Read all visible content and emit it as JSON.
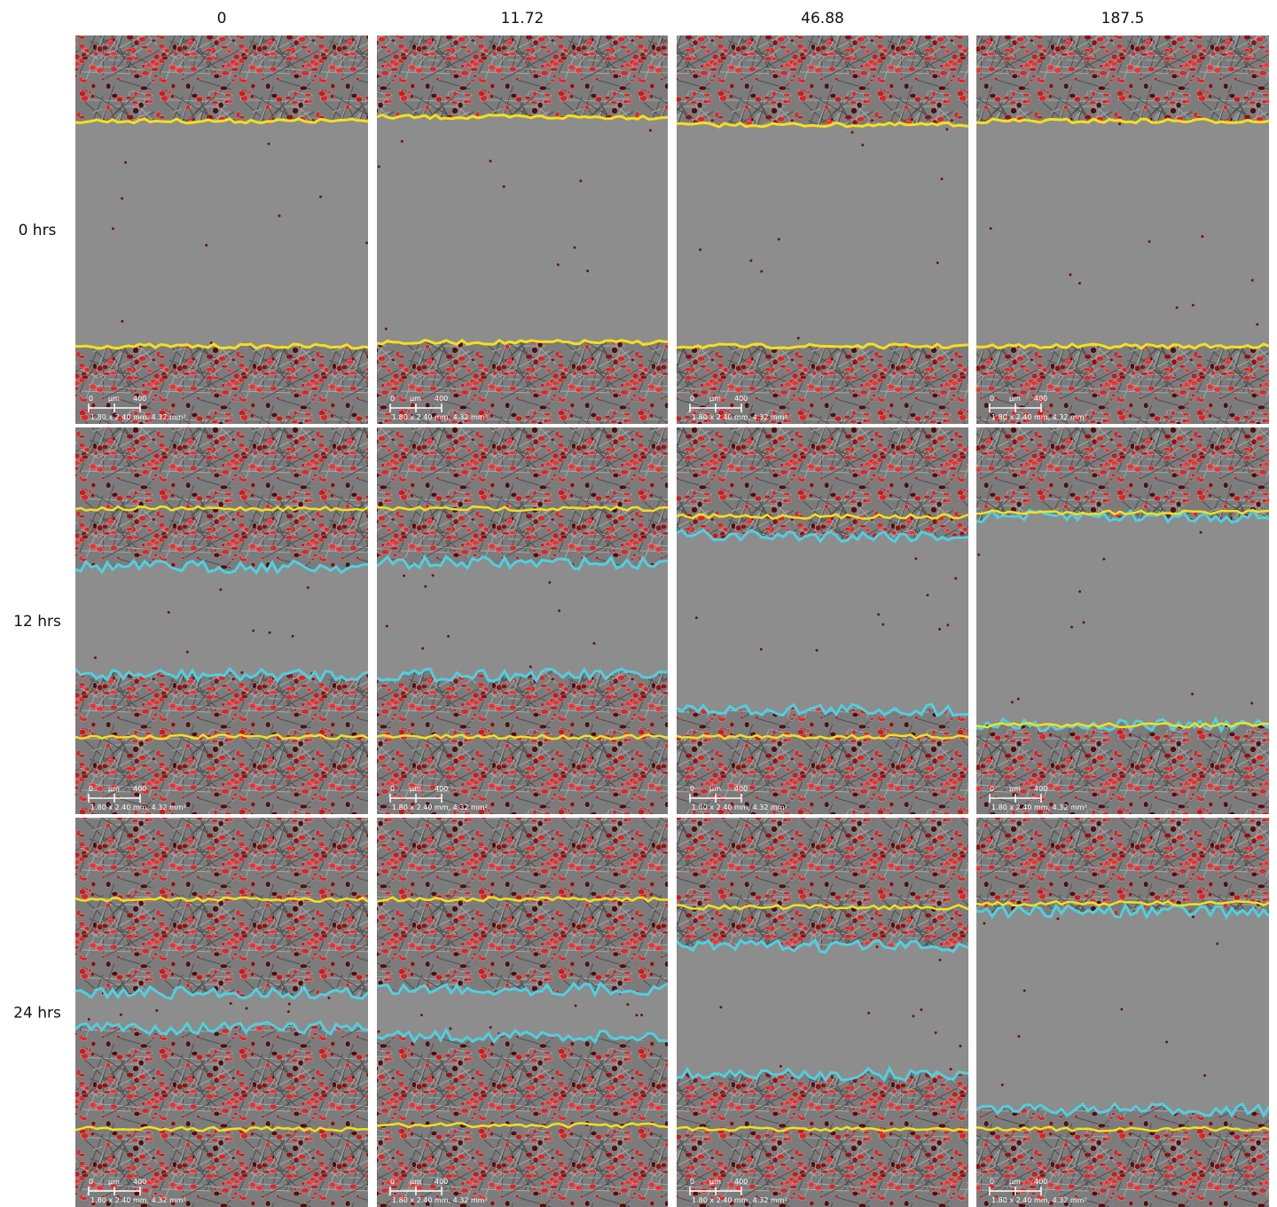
{
  "columns": [
    "0",
    "11.72",
    "46.88",
    "187.5"
  ],
  "rows": [
    "0 hrs",
    "12 hrs",
    "24 hrs"
  ],
  "scale_bar": {
    "start": "0",
    "unit": "µm",
    "end": "400",
    "field": "1.80 x 2.40 mm, 4.32 mm²"
  }
}
